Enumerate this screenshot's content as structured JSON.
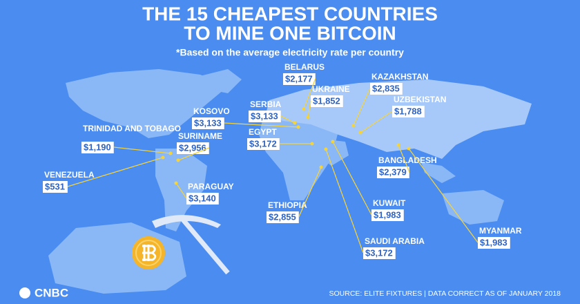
{
  "header": {
    "title_line1": "THE 15 CHEAPEST COUNTRIES",
    "title_line2": "TO MINE ONE BITCOIN",
    "subtitle": "*Based on the average electricity rate per country"
  },
  "countries": [
    {
      "name": "BELARUS",
      "cost": "$2,177"
    },
    {
      "name": "KAZAKHSTAN",
      "cost": "$2,835"
    },
    {
      "name": "UKRAINE",
      "cost": "$1,852"
    },
    {
      "name": "UZBEKISTAN",
      "cost": "$1,788"
    },
    {
      "name": "SERBIA",
      "cost": "$3,133"
    },
    {
      "name": "KOSOVO",
      "cost": "$3,133"
    },
    {
      "name": "TRINIDAD AND TOBAGO",
      "cost": "$1,190"
    },
    {
      "name": "SURINAME",
      "cost": "$2,956"
    },
    {
      "name": "EGYPT",
      "cost": "$3,172"
    },
    {
      "name": "VENEZUELA",
      "cost": "$531"
    },
    {
      "name": "BANGLADESH",
      "cost": "$2,379"
    },
    {
      "name": "PARAGUAY",
      "cost": "$3,140"
    },
    {
      "name": "ETHIOPIA",
      "cost": "$2,855"
    },
    {
      "name": "KUWAIT",
      "cost": "$1,983"
    },
    {
      "name": "MYANMAR",
      "cost": "$1,983"
    },
    {
      "name": "SAUDI ARABIA",
      "cost": "$3,172"
    }
  ],
  "footer": {
    "logo": "CNBC",
    "source": "SOURCE: ELITE FIXTURES | DATA CORRECT AS OF JANUARY 2018"
  }
}
